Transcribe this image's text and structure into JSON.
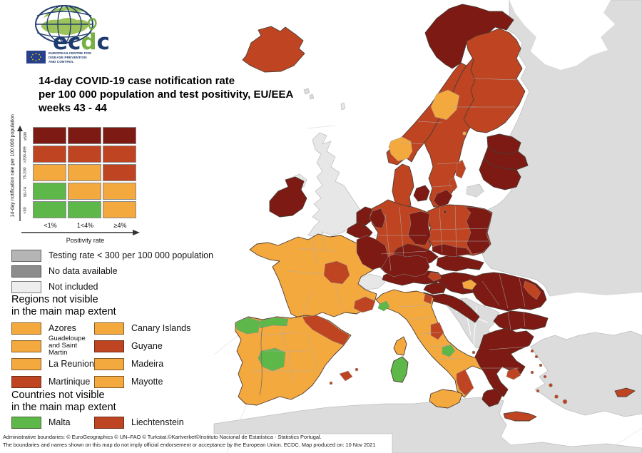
{
  "logo": {
    "word_part1": "ec",
    "word_part2": "d",
    "word_part3": "c",
    "sub_line1": "EUROPEAN CENTRE FOR",
    "sub_line2": "DISEASE PREVENTION",
    "sub_line3": "AND CONTROL"
  },
  "title": {
    "line1": "14-day COVID-19 case notification rate",
    "line2": "per 100 000 population and test positivity, EU/EEA",
    "line3": "weeks 43 - 44"
  },
  "matrix": {
    "y_axis_label": "14-day notification rate per 100 000 population",
    "x_axis_label": "Positivity rate",
    "row_labels": [
      "≥500",
      ">200-499",
      "75-200",
      "50-74",
      "<50"
    ],
    "col_labels": [
      "<1%",
      "1<4%",
      "≥4%"
    ],
    "cells": [
      [
        "darkred",
        "darkred",
        "darkred"
      ],
      [
        "red",
        "red",
        "red"
      ],
      [
        "orange",
        "orange",
        "red"
      ],
      [
        "green",
        "orange",
        "orange"
      ],
      [
        "green",
        "green",
        "orange"
      ]
    ]
  },
  "colors": {
    "darkred": "#7c1a13",
    "red": "#bf4522",
    "orange": "#f4a93f",
    "green": "#5eb849",
    "testing": "#b5b5b5",
    "nodata": "#8c8c8c",
    "notincluded_swatch": "#eeeeee",
    "noneu": "#dcdcdc",
    "notincl": "#e7e7e7",
    "sea": "#ffffff"
  },
  "legend_items": [
    {
      "label": "Testing rate < 300 per 100 000 population",
      "color": "testing"
    },
    {
      "label": "No data available",
      "color": "nodata"
    },
    {
      "label": "Not included",
      "color": "notincluded_swatch"
    }
  ],
  "regions_section": {
    "heading_line1": "Regions not visible",
    "heading_line2": "in the main map extent",
    "items": [
      {
        "label": "Azores",
        "color": "orange",
        "small": false
      },
      {
        "label": "Canary Islands",
        "color": "orange",
        "small": false
      },
      {
        "label": "Guadeloupe and Saint Martin",
        "color": "orange",
        "small": true
      },
      {
        "label": "Guyane",
        "color": "red",
        "small": false
      },
      {
        "label": "La Reunion",
        "color": "orange",
        "small": false
      },
      {
        "label": "Madeira",
        "color": "orange",
        "small": false
      },
      {
        "label": "Martinique",
        "color": "red",
        "small": false
      },
      {
        "label": "Mayotte",
        "color": "orange",
        "small": false
      }
    ]
  },
  "countries_section": {
    "heading_line1": "Countries not visible",
    "heading_line2": "in the main map extent",
    "items": [
      {
        "label": "Malta",
        "color": "green",
        "small": false
      },
      {
        "label": "Liechtenstein",
        "color": "red",
        "small": false
      }
    ]
  },
  "footer": {
    "line1": "Administrative boundaries: © EuroGeographics © UN–FAO © Turkstat.©Kartverket©Instituto Nacional de Estatística - Statistics Portugal.",
    "line2": "The boundaries and names shown on this map do not imply official endorsement or acceptance by the European Union. ECDC. Map produced on: 10 Nov 2021"
  },
  "map": {
    "regions": {
      "east_block": "noneu",
      "white_sea": "sea",
      "black_sea": "sea",
      "turkey": "noneu",
      "africa": "noneu",
      "west_balkans": "noneu",
      "uk": "notincl",
      "northern_ireland": "notincl",
      "switzerland": "notincl",
      "kaliningrad": "noneu",
      "faroe": "noneu",
      "shetland": "notincl",
      "iceland": "red",
      "norway": "red",
      "norway_north": "darkred",
      "norway_south_patch": "orange",
      "sweden": "red",
      "sweden_mid_patch": "orange",
      "sweden_skane_patch": "darkred",
      "gotland": "red",
      "oland": "red",
      "bornholm": "darkred",
      "aland": "orange",
      "finland": "red",
      "estonia": "darkred",
      "latvia": "darkred",
      "lithuania": "darkred",
      "denmark_jutland": "red",
      "denmark_zealand": "darkred",
      "ireland": "darkred",
      "netherlands": "darkred",
      "belgium": "darkred",
      "germany": "red",
      "germany_west_patch": "darkred",
      "germany_east_patch": "darkred",
      "germany_south_patch": "darkred",
      "poland": "red",
      "poland_east_patch": "darkred",
      "poland_south_patch": "darkred",
      "czechia": "darkred",
      "slovakia": "darkred",
      "austria": "darkred",
      "austria_east_patch": "red",
      "hungary": "darkred",
      "hungary_west_patch": "orange",
      "slovenia": "darkred",
      "croatia": "darkred",
      "france": "orange",
      "france_west_patch": "red",
      "france_southeast_patch": "red",
      "france_northeast_patch": "darkred",
      "iberia": "orange",
      "galicia_patch": "green",
      "asturias_patch": "green",
      "extremadura_patch": "green",
      "spain_northeast_patch": "red",
      "mallorca": "red",
      "menorca": "red",
      "ibiza": "red",
      "italy": "orange",
      "aosta_patch": "green",
      "friuli_patch": "red",
      "marche_patch": "red",
      "molise_patch": "green",
      "calabria_patch": "red",
      "sicily": "orange",
      "sardinia": "green",
      "corsica": "orange",
      "romania": "darkred",
      "romania_east_patch": "red",
      "bulgaria": "darkred",
      "greece": "darkred",
      "peloponnese": "darkred",
      "attica_patch": "red",
      "crete": "red",
      "aegean_island": "red",
      "cyprus": "red"
    }
  }
}
